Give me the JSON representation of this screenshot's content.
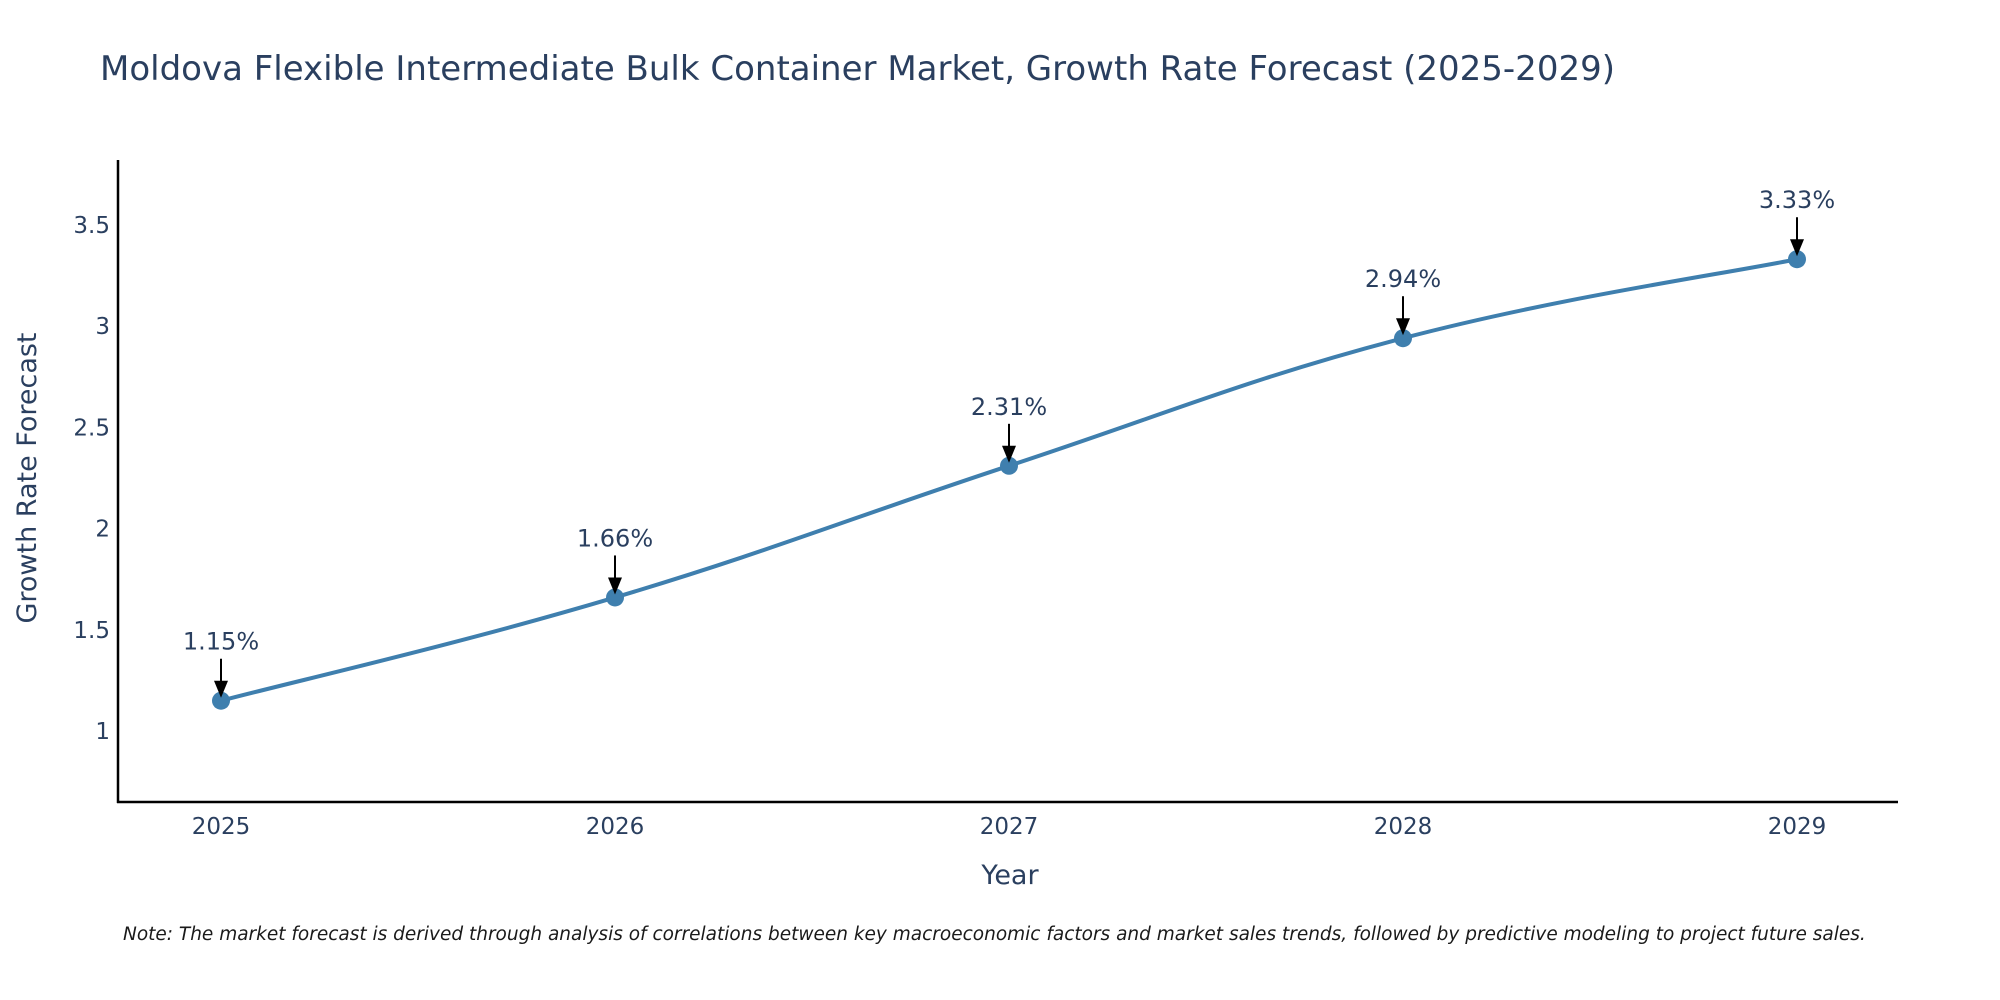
{
  "chart_data": {
    "type": "line",
    "title": "Moldova Flexible Intermediate Bulk Container Market, Growth Rate Forecast (2025-2029)",
    "xlabel": "Year",
    "ylabel": "Growth Rate Forecast",
    "categories": [
      "2025",
      "2026",
      "2027",
      "2028",
      "2029"
    ],
    "series": [
      {
        "name": "Growth Rate Forecast",
        "values": [
          1.15,
          1.66,
          2.31,
          2.94,
          3.33
        ],
        "labels": [
          "1.15%",
          "1.66%",
          "2.31%",
          "2.94%",
          "3.33%"
        ]
      }
    ],
    "ylim": [
      0.65,
      3.82
    ],
    "yticks": [
      1,
      1.5,
      2,
      2.5,
      3,
      3.5
    ],
    "ytick_labels": [
      "1",
      "1.5",
      "2",
      "2.5",
      "3",
      "3.5"
    ],
    "grid": false,
    "line_color": "#3f7fae",
    "marker_color": "#3f7fae"
  },
  "note": "Note: The market forecast is derived through analysis of correlations between key macroeconomic factors and market sales trends, followed by predictive modeling to project future sales."
}
